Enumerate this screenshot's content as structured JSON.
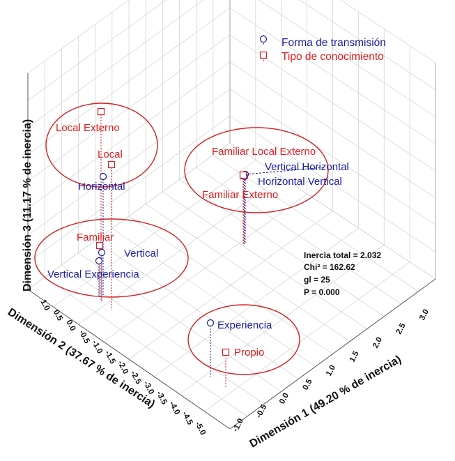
{
  "chart_data": {
    "type": "scatter",
    "subtype": "3d-correspondence-analysis",
    "axes": {
      "x": {
        "label": "Dimensión 1 (49.20 % de inercia)",
        "ticks": [
          "-1.0",
          "-0.5",
          "0.0",
          "0.5",
          "1.0",
          "1.5",
          "2.0",
          "2.5",
          "3.0"
        ]
      },
      "y": {
        "label": "Dimensión 2 (37.67 % de inercia)",
        "ticks": [
          "1.0",
          "0.5",
          "0.0",
          "-0.5",
          "-1.0",
          "-1.5",
          "-2.0",
          "-2.5",
          "-3.0",
          "-3.5",
          "-4.0",
          "-4.5",
          "-5.0"
        ]
      },
      "z": {
        "label": "Dimensión 3 (11.17 % de inercia)"
      }
    },
    "legend": {
      "position": "top-right",
      "entries": [
        {
          "name": "Forma de transmisión",
          "marker": "circle",
          "color": "#1a1aa6"
        },
        {
          "name": "Tipo de conocimiento",
          "marker": "square",
          "color": "#e41a1c"
        }
      ]
    },
    "labels": [
      {
        "text": "Local Externo",
        "series": "Tipo de conocimiento"
      },
      {
        "text": "Local",
        "series": "Tipo de conocimiento"
      },
      {
        "text": "Horizontal",
        "series": "Forma de transmisión"
      },
      {
        "text": "Familiar",
        "series": "Tipo de conocimiento"
      },
      {
        "text": "Vertical",
        "series": "Forma de transmisión"
      },
      {
        "text": "Vertical Experiencia",
        "series": "Forma de transmisión"
      },
      {
        "text": "Familiar Local Externo",
        "series": "Tipo de conocimiento"
      },
      {
        "text": "Vertical Horizontal",
        "series": "Forma de transmisión"
      },
      {
        "text": "Horizontal Vertical",
        "series": "Forma de transmisión"
      },
      {
        "text": "Familiar Externo",
        "series": "Tipo de conocimiento"
      },
      {
        "text": "Experiencia",
        "series": "Forma de transmisión"
      },
      {
        "text": "Propio",
        "series": "Tipo de conocimiento"
      }
    ],
    "stats": [
      "Inercia total = 2.032",
      "Chi² = 162.62",
      "gl = 25",
      "P = 0.000"
    ],
    "grid": true,
    "colors": {
      "blue": "#1a1aa6",
      "red": "#e41a1c",
      "ellipse": "#d41f1f",
      "grid": "#cfcfcf"
    }
  }
}
